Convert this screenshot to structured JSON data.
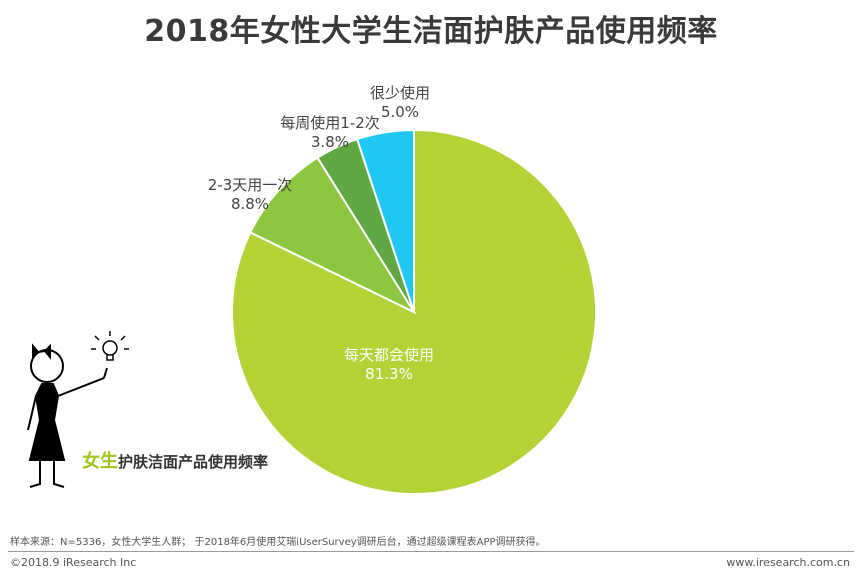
{
  "title": "2018年女性大学生洁面护肤产品使用频率",
  "chart_data": {
    "type": "pie",
    "title": "2018年女性大学生洁面护肤产品使用频率",
    "slices": [
      {
        "label": "每天都会使用",
        "value": 81.3,
        "value_text": "81.3%",
        "color": "#b2d235"
      },
      {
        "label": "2-3天用一次",
        "value": 8.8,
        "value_text": "8.8%",
        "color": "#8dc63f"
      },
      {
        "label": "每周使用1-2次",
        "value": 3.8,
        "value_text": "3.8%",
        "color": "#5fa843"
      },
      {
        "label": "很少使用",
        "value": 5.0,
        "value_text": "5.0%",
        "color": "#1fc8f0"
      }
    ]
  },
  "caption": {
    "accent": "女生",
    "rest": "护肤洁面产品使用频率"
  },
  "footer": {
    "source": "样本来源：N=5336，女性大学生人群； 于2018年6月使用艾瑞iUserSurvey调研后台，通过超级课程表APP调研获得。",
    "copyright": "©2018.9 iResearch Inc",
    "website": "www.iresearch.com.cn"
  }
}
